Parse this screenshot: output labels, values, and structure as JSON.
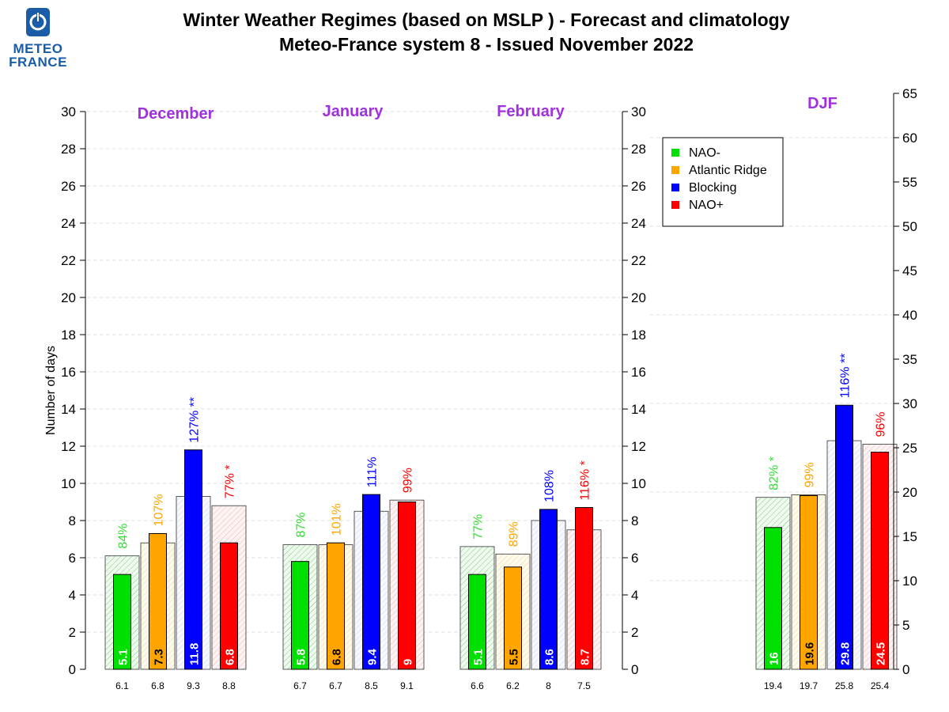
{
  "logo": {
    "line1": "METEO",
    "line2": "FRANCE"
  },
  "header": {
    "title": "Winter Weather Regimes (based on MSLP )  -  Forecast and climatology",
    "subtitle": "Meteo-France system 8   -   Issued November 2022"
  },
  "colors": {
    "NAO-": "#00e000",
    "Atlantic Ridge": "#ffa500",
    "Blocking": "#0000ff",
    "NAO+": "#ff0000",
    "month_label": "#a030e0",
    "percent_NAO-": "#33dd33"
  },
  "chart_data": {
    "type": "bar",
    "ylabel": "Number of days",
    "y_ticks_left": [
      0,
      2,
      4,
      6,
      8,
      10,
      12,
      14,
      16,
      18,
      20,
      22,
      24,
      26,
      28,
      30
    ],
    "y_ticks_right_djf": [
      0,
      5,
      10,
      15,
      20,
      25,
      30,
      35,
      40,
      45,
      50,
      55,
      60,
      65
    ],
    "ylim_monthly": [
      0,
      30
    ],
    "ylim_djf": [
      0,
      65
    ],
    "series_names": [
      "NAO-",
      "Atlantic Ridge",
      "Blocking",
      "NAO+"
    ],
    "legend": [
      "NAO-",
      "Atlantic Ridge",
      "Blocking",
      "NAO+"
    ],
    "groups": [
      {
        "label": "December",
        "forecast": [
          5.1,
          7.3,
          11.8,
          6.8
        ],
        "forecast_labels": [
          "5.1",
          "7.3",
          "11.8",
          "6.8"
        ],
        "climatology": [
          6.1,
          6.8,
          9.3,
          8.8
        ],
        "climatology_labels": [
          "6.1",
          "6.8",
          "9.3",
          "8.8"
        ],
        "percent": [
          "84%",
          "107%",
          "127% **",
          "77% *"
        ]
      },
      {
        "label": "January",
        "forecast": [
          5.8,
          6.8,
          9.4,
          9
        ],
        "forecast_labels": [
          "5.8",
          "6.8",
          "9.4",
          "9"
        ],
        "climatology": [
          6.7,
          6.7,
          8.5,
          9.1
        ],
        "climatology_labels": [
          "6.7",
          "6.7",
          "8.5",
          "9.1"
        ],
        "percent": [
          "87%",
          "101%",
          "111%",
          "99%"
        ]
      },
      {
        "label": "February",
        "forecast": [
          5.1,
          5.5,
          8.6,
          8.7
        ],
        "forecast_labels": [
          "5.1",
          "5.5",
          "8.6",
          "8.7"
        ],
        "climatology": [
          6.6,
          6.2,
          8,
          7.5
        ],
        "climatology_labels": [
          "6.6",
          "6.2",
          "8",
          "7.5"
        ],
        "percent": [
          "77%",
          "89%",
          "108%",
          "116% *"
        ]
      },
      {
        "label": "DJF",
        "forecast": [
          16,
          19.6,
          29.8,
          24.5
        ],
        "forecast_labels": [
          "16",
          "19.6",
          "29.8",
          "24.5"
        ],
        "climatology": [
          19.4,
          19.7,
          25.8,
          25.4
        ],
        "climatology_labels": [
          "19.4",
          "19.7",
          "25.8",
          "25.4"
        ],
        "percent": [
          "82% *",
          "99%",
          "116% **",
          "96%"
        ]
      }
    ]
  }
}
